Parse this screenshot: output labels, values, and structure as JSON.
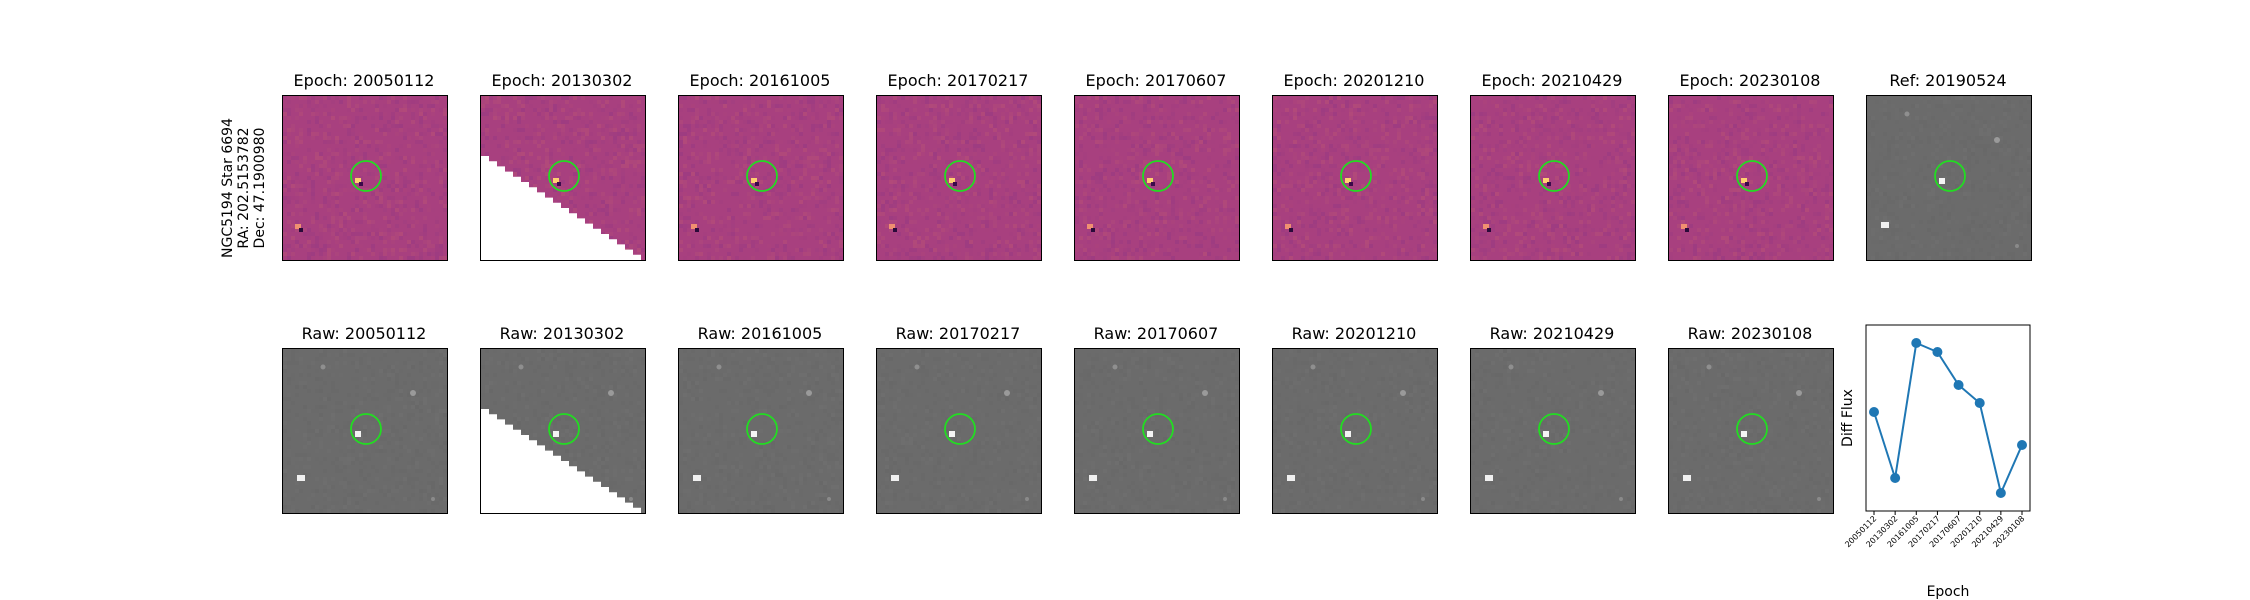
{
  "target": {
    "line1": "NGC5194 Star 6694",
    "line2": "RA: 202.5153782",
    "line3": "Dec: 47.1900980"
  },
  "top_row": [
    {
      "label": "Epoch: 20050112",
      "kind": "diff",
      "mask": "none"
    },
    {
      "label": "Epoch: 20130302",
      "kind": "diff",
      "mask": "lower-left-wedge"
    },
    {
      "label": "Epoch: 20161005",
      "kind": "diff",
      "mask": "none"
    },
    {
      "label": "Epoch: 20170217",
      "kind": "diff",
      "mask": "none"
    },
    {
      "label": "Epoch: 20170607",
      "kind": "diff",
      "mask": "none"
    },
    {
      "label": "Epoch: 20201210",
      "kind": "diff",
      "mask": "none"
    },
    {
      "label": "Epoch: 20210429",
      "kind": "diff",
      "mask": "none"
    },
    {
      "label": "Epoch: 20230108",
      "kind": "diff",
      "mask": "none"
    },
    {
      "label": "Ref: 20190524",
      "kind": "gray",
      "mask": "none"
    }
  ],
  "bottom_row": [
    {
      "label": "Raw: 20050112",
      "kind": "gray",
      "mask": "none"
    },
    {
      "label": "Raw: 20130302",
      "kind": "gray",
      "mask": "lower-left-wedge"
    },
    {
      "label": "Raw: 20161005",
      "kind": "gray",
      "mask": "none"
    },
    {
      "label": "Raw: 20170217",
      "kind": "gray",
      "mask": "none"
    },
    {
      "label": "Raw: 20170607",
      "kind": "gray",
      "mask": "none"
    },
    {
      "label": "Raw: 20201210",
      "kind": "gray",
      "mask": "none"
    },
    {
      "label": "Raw: 20210429",
      "kind": "gray",
      "mask": "none"
    },
    {
      "label": "Raw: 20230108",
      "kind": "gray",
      "mask": "none"
    }
  ],
  "colors": {
    "aperture": "#22dd22",
    "diff_background": "#a8407f",
    "gray_background": "#6b6b6b",
    "series": "#1f77b4"
  },
  "chart_data": {
    "type": "line",
    "categories": [
      "20050112",
      "20130302",
      "20161005",
      "20170217",
      "20170607",
      "20201210",
      "20210429",
      "20230108"
    ],
    "values": [
      0.55,
      -0.55,
      1.7,
      1.55,
      1.0,
      0.7,
      -0.8,
      0.0
    ],
    "ylim": [
      -1.1,
      2.0
    ],
    "xlabel": "Epoch",
    "ylabel": "Diff Flux",
    "grid": false,
    "marker": "circle"
  }
}
